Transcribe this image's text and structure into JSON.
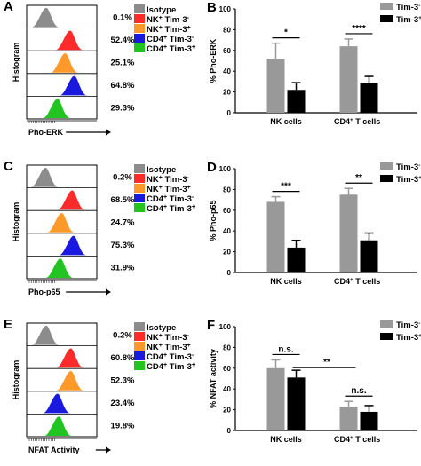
{
  "colors": {
    "isotype": "#8c8c8c",
    "nk_neg": "#ff2a2a",
    "nk_pos": "#ff9a2a",
    "cd4_neg": "#1a1adf",
    "cd4_pos": "#22c422",
    "bar_neg": "#999999",
    "bar_pos": "#000000"
  },
  "legend_histogram": {
    "isotype": "Isotype",
    "nk_neg": {
      "main": "NK",
      "sup1": "+",
      "mid": " Tim-3",
      "sup2": "-"
    },
    "nk_pos": {
      "main": "NK",
      "sup1": "+",
      "mid": " Tim-3",
      "sup2": "+"
    },
    "cd4_neg": {
      "main": "CD4",
      "sup1": "+",
      "mid": " Tim-3",
      "sup2": "-"
    },
    "cd4_pos": {
      "main": "CD4",
      "sup1": "+",
      "mid": " Tim-3",
      "sup2": "+"
    }
  },
  "legend_bar": {
    "neg": {
      "main": "Tim-3",
      "sup": "-"
    },
    "pos": {
      "main": "Tim-3",
      "sup": "+"
    }
  },
  "x_categories": {
    "nk": "NK cells",
    "cd4": {
      "main": "CD4",
      "sup": "+",
      "tail": " T cells"
    }
  },
  "chart_data": [
    {
      "panel": "A",
      "type": "histogram",
      "ylabel": "Histogram",
      "xlabel": "Pho-ERK",
      "tracks": [
        "Isotype",
        "NK+ Tim-3-",
        "NK+ Tim-3+",
        "CD4+ Tim-3-",
        "CD4+ Tim-3+"
      ],
      "percentages": [
        "0.1%",
        "52.4%",
        "25.1%",
        "64.8%",
        "29.3%"
      ]
    },
    {
      "panel": "B",
      "type": "bar",
      "ylabel": "% Pho-ERK",
      "categories": [
        "NK cells",
        "CD4+ T cells"
      ],
      "ylim": [
        0,
        100
      ],
      "yticks": [
        0,
        20,
        40,
        60,
        80,
        100
      ],
      "series": [
        {
          "name": "Tim-3-",
          "values": [
            52,
            64
          ],
          "errors": [
            15,
            7
          ]
        },
        {
          "name": "Tim-3+",
          "values": [
            22,
            29
          ],
          "errors": [
            7,
            6
          ]
        }
      ],
      "significance": [
        {
          "label": "*",
          "group": 0
        },
        {
          "label": "****",
          "group": 1
        }
      ],
      "legend": "top-right"
    },
    {
      "panel": "C",
      "type": "histogram",
      "ylabel": "Histogram",
      "xlabel": "Pho-p65",
      "tracks": [
        "Isotype",
        "NK+ Tim-3-",
        "NK+ Tim-3+",
        "CD4+ Tim-3-",
        "CD4+ Tim-3+"
      ],
      "percentages": [
        "0.2%",
        "68.5%",
        "24.7%",
        "75.3%",
        "31.9%"
      ]
    },
    {
      "panel": "D",
      "type": "bar",
      "ylabel": "% Pho-p65",
      "categories": [
        "NK cells",
        "CD4+ T cells"
      ],
      "ylim": [
        0,
        100
      ],
      "yticks": [
        0,
        20,
        40,
        60,
        80,
        100
      ],
      "series": [
        {
          "name": "Tim-3-",
          "values": [
            68,
            75
          ],
          "errors": [
            5,
            6
          ]
        },
        {
          "name": "Tim-3+",
          "values": [
            24,
            31
          ],
          "errors": [
            7,
            7
          ]
        }
      ],
      "significance": [
        {
          "label": "***",
          "group": 0
        },
        {
          "label": "**",
          "group": 1
        }
      ],
      "legend": "top-right"
    },
    {
      "panel": "E",
      "type": "histogram",
      "ylabel": "Histogram",
      "xlabel": "NFAT Activity",
      "tracks": [
        "Isotype",
        "NK+ Tim-3-",
        "NK+ Tim-3+",
        "CD4+ Tim-3-",
        "CD4+ Tim-3+"
      ],
      "percentages": [
        "0.2%",
        "60.8%",
        "52.3%",
        "23.4%",
        "19.8%"
      ]
    },
    {
      "panel": "F",
      "type": "bar",
      "ylabel": "% NFAT activity",
      "categories": [
        "NK cells",
        "CD4+ T cells"
      ],
      "ylim": [
        0,
        100
      ],
      "yticks": [
        0,
        20,
        40,
        60,
        80,
        100
      ],
      "series": [
        {
          "name": "Tim-3-",
          "values": [
            60,
            23
          ],
          "errors": [
            8,
            5
          ]
        },
        {
          "name": "Tim-3+",
          "values": [
            51,
            18
          ],
          "errors": [
            7,
            6
          ]
        }
      ],
      "significance": [
        {
          "label": "n.s.",
          "group": 0
        },
        {
          "label": "n.s.",
          "group": 1
        },
        {
          "label": "**",
          "cross": true
        }
      ],
      "legend": "top-right"
    }
  ]
}
